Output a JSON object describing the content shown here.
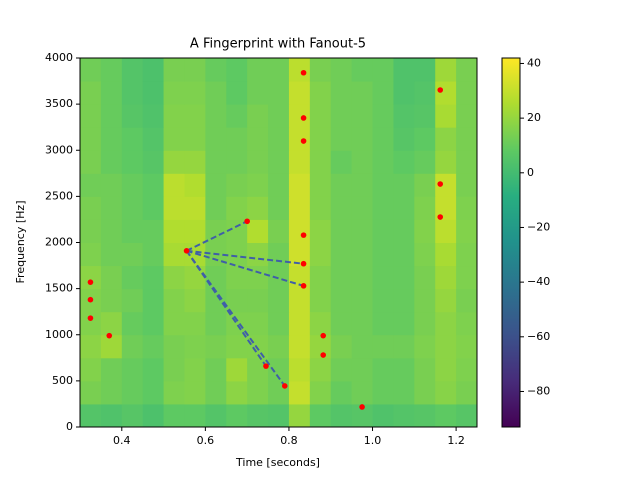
{
  "chart_data": {
    "type": "spectrogram",
    "title": "A Fingerprint with Fanout-5",
    "x_label": "Time [seconds]",
    "y_label": "Frequency [Hz]",
    "xlim": [
      0.3,
      1.25
    ],
    "ylim": [
      0,
      4000
    ],
    "xticks": [
      0.4,
      0.6,
      0.8,
      {
        "value": 1.0,
        "label": "1.0"
      },
      1.2
    ],
    "yticks": [
      0,
      500,
      1000,
      1500,
      2000,
      2500,
      3000,
      3500,
      4000
    ],
    "clim": [
      -93,
      42
    ],
    "colorbar_ticks": [
      40,
      20,
      0,
      {
        "value": -20,
        "label": "−20"
      },
      {
        "value": -40,
        "label": "−40"
      },
      {
        "value": -60,
        "label": "−60"
      },
      {
        "value": -80,
        "label": "−80"
      }
    ],
    "z": [
      [
        5,
        4,
        6,
        3,
        8,
        8,
        5,
        8,
        6,
        5,
        20,
        8,
        5,
        6,
        4,
        5,
        6,
        8,
        6
      ],
      [
        14,
        12,
        10,
        8,
        15,
        16,
        12,
        18,
        15,
        12,
        30,
        16,
        10,
        12,
        10,
        10,
        14,
        17,
        14
      ],
      [
        16,
        12,
        10,
        8,
        14,
        16,
        12,
        22,
        15,
        12,
        28,
        18,
        12,
        12,
        10,
        10,
        14,
        18,
        15
      ],
      [
        18,
        22,
        12,
        10,
        14,
        15,
        14,
        16,
        16,
        14,
        30,
        20,
        14,
        12,
        12,
        12,
        15,
        18,
        16
      ],
      [
        16,
        18,
        10,
        8,
        16,
        16,
        12,
        15,
        15,
        12,
        30,
        18,
        12,
        12,
        10,
        10,
        14,
        18,
        15
      ],
      [
        16,
        14,
        12,
        8,
        16,
        18,
        12,
        14,
        14,
        12,
        30,
        16,
        12,
        12,
        10,
        10,
        14,
        20,
        14
      ],
      [
        18,
        14,
        10,
        8,
        18,
        20,
        12,
        15,
        15,
        12,
        30,
        16,
        12,
        12,
        10,
        10,
        14,
        22,
        15
      ],
      [
        15,
        12,
        12,
        10,
        24,
        24,
        14,
        15,
        18,
        12,
        32,
        18,
        12,
        12,
        10,
        10,
        15,
        24,
        15
      ],
      [
        14,
        12,
        10,
        10,
        26,
        26,
        14,
        15,
        26,
        14,
        32,
        18,
        12,
        12,
        10,
        10,
        16,
        28,
        16
      ],
      [
        14,
        12,
        10,
        8,
        28,
        28,
        12,
        16,
        18,
        12,
        32,
        16,
        12,
        12,
        10,
        10,
        15,
        30,
        15
      ],
      [
        12,
        12,
        10,
        8,
        28,
        26,
        12,
        14,
        15,
        12,
        32,
        16,
        12,
        12,
        10,
        10,
        14,
        30,
        14
      ],
      [
        14,
        10,
        8,
        6,
        20,
        20,
        12,
        12,
        14,
        12,
        30,
        16,
        10,
        12,
        10,
        8,
        10,
        20,
        14
      ],
      [
        14,
        10,
        8,
        5,
        16,
        16,
        12,
        12,
        14,
        12,
        30,
        16,
        12,
        12,
        10,
        6,
        8,
        18,
        14
      ],
      [
        14,
        10,
        6,
        4,
        16,
        16,
        12,
        10,
        14,
        12,
        30,
        16,
        12,
        12,
        10,
        5,
        6,
        24,
        14
      ],
      [
        14,
        10,
        5,
        3,
        15,
        15,
        12,
        8,
        12,
        12,
        30,
        16,
        12,
        12,
        10,
        4,
        5,
        26,
        14
      ],
      [
        12,
        10,
        5,
        3,
        14,
        14,
        10,
        8,
        12,
        12,
        28,
        14,
        12,
        10,
        10,
        4,
        4,
        22,
        14
      ]
    ],
    "peaks": {
      "color": "#ff0000",
      "x": [
        0.325,
        0.325,
        0.325,
        0.37,
        0.555,
        0.7,
        0.745,
        0.79,
        0.835,
        0.835,
        0.835,
        0.835,
        0.835,
        0.835,
        0.882,
        0.882,
        0.975,
        1.162,
        1.162,
        1.162
      ],
      "y": [
        1570,
        1380,
        1180,
        990,
        1910,
        2230,
        660,
        445,
        3840,
        3350,
        3100,
        2080,
        1770,
        1530,
        990,
        780,
        217,
        3653,
        2634,
        2276
      ]
    },
    "fanout_color": "#3f5fa8",
    "fanout": [
      {
        "x": [
          0.555,
          0.7
        ],
        "y": [
          1910,
          2230
        ]
      },
      {
        "x": [
          0.555,
          0.835
        ],
        "y": [
          1910,
          1770
        ]
      },
      {
        "x": [
          0.555,
          0.835
        ],
        "y": [
          1910,
          1530
        ]
      },
      {
        "x": [
          0.555,
          0.745
        ],
        "y": [
          1910,
          660
        ]
      },
      {
        "x": [
          0.555,
          0.79
        ],
        "y": [
          1910,
          445
        ]
      }
    ]
  }
}
